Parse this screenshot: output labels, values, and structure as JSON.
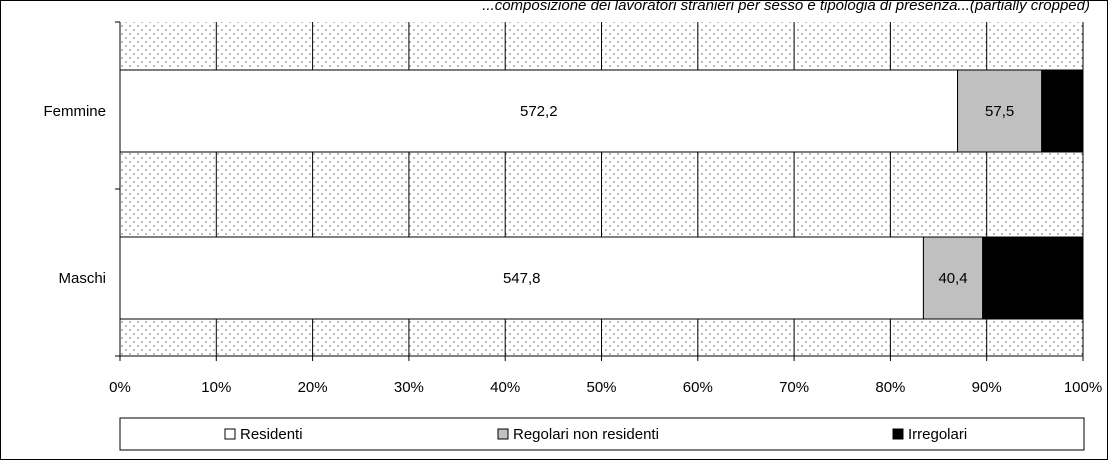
{
  "chart_data": {
    "type": "bar",
    "orientation": "horizontal",
    "stacked": true,
    "normalized": "percent",
    "title": "...composizione dei lavoratori stranieri per sesso e tipologia di presenza...(partially cropped)",
    "categories": [
      "Femmine",
      "Maschi"
    ],
    "series": [
      {
        "name": "Residenti",
        "values": [
          572.2,
          547.8
        ],
        "labels": [
          "572,2",
          "547,8"
        ],
        "color": "#ffffff"
      },
      {
        "name": "Regolari non residenti",
        "values": [
          57.5,
          40.4
        ],
        "labels": [
          "57,5",
          "40,4"
        ],
        "color": "#c0c0c0"
      },
      {
        "name": "Irregolari",
        "values": [
          28.2,
          68.4
        ],
        "labels": [
          "28,2",
          "68,4"
        ],
        "color": "#000000"
      }
    ],
    "xticks": [
      "0%",
      "10%",
      "20%",
      "30%",
      "40%",
      "50%",
      "60%",
      "70%",
      "80%",
      "90%",
      "100%"
    ],
    "xlim": [
      0,
      100
    ],
    "grid": "vertical",
    "legend_position": "bottom",
    "legend": [
      "Residenti",
      "Regolari non residenti",
      "Irregolari"
    ]
  }
}
